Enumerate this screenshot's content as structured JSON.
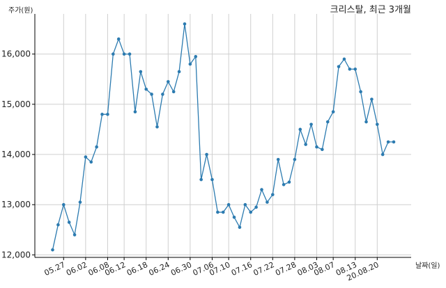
{
  "chart_data": {
    "type": "line",
    "title": "크리스탈, 최근 3개월",
    "ylabel": "주가(원)",
    "xlabel": "날짜(일)",
    "ylim": [
      11950,
      16800
    ],
    "yticks": [
      12000,
      13000,
      14000,
      15000,
      16000
    ],
    "ytick_labels": [
      "12,000",
      "13,000",
      "14,000",
      "15,000",
      "16,000"
    ],
    "xticks": [
      "05.27",
      "06.02",
      "06.08",
      "06.12",
      "06.18",
      "06.24",
      "06.30",
      "07.06",
      "07.10",
      "07.16",
      "07.22",
      "07.28",
      "08.03",
      "08.07",
      "08.13",
      "20.08.20"
    ],
    "xtick_positions": [
      2,
      6,
      10,
      13,
      17,
      21,
      25,
      29,
      32,
      36,
      40,
      44,
      48,
      51,
      55,
      59
    ],
    "grid": true,
    "line_color": "#2c7bb0",
    "values": [
      12100,
      12600,
      13000,
      12650,
      12400,
      13050,
      13950,
      13850,
      14150,
      14800,
      14800,
      16000,
      16300,
      16000,
      16000,
      14850,
      15650,
      15300,
      15200,
      14550,
      15200,
      15450,
      15250,
      15650,
      16600,
      15800,
      15950,
      13500,
      14000,
      13500,
      12850,
      12850,
      13000,
      12750,
      12550,
      13000,
      12850,
      12950,
      13300,
      13050,
      13200,
      13900,
      13400,
      13450,
      13900,
      14500,
      14200,
      14600,
      14150,
      14100,
      14650,
      14850,
      15750,
      15900,
      15700,
      15700,
      15250,
      14650,
      15100,
      14600,
      14000,
      14250,
      14250
    ]
  }
}
